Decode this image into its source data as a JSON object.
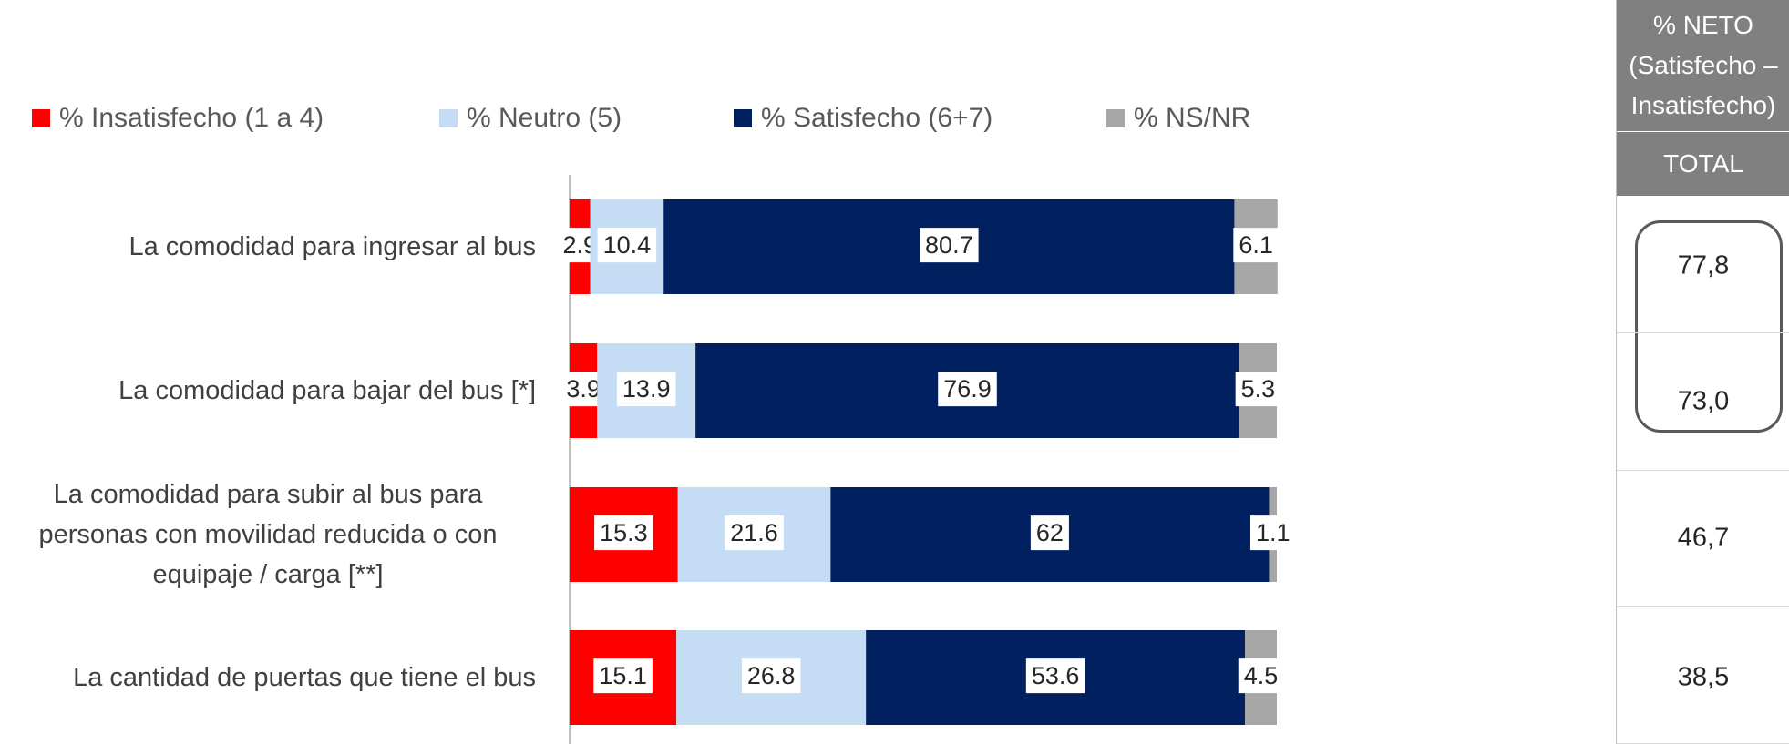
{
  "chart_data": {
    "type": "stacked-bar-horizontal",
    "categories": [
      "La comodidad para ingresar al bus",
      "La comodidad para bajar del bus [*]",
      "La comodidad para subir al bus para personas con movilidad reducida o con equipaje / carga [**]",
      "La cantidad de puertas que tiene el bus"
    ],
    "series": [
      {
        "name": "% Insatisfecho (1 a 4)",
        "color": "#ff0000",
        "values": [
          2.9,
          3.9,
          15.3,
          15.1
        ]
      },
      {
        "name": "% Neutro (5)",
        "color": "#c5dcf5",
        "values": [
          10.4,
          13.9,
          21.6,
          26.8
        ]
      },
      {
        "name": "% Satisfecho (6+7)",
        "color": "#002060",
        "values": [
          80.7,
          76.9,
          62,
          53.6
        ]
      },
      {
        "name": "% NS/NR",
        "color": "#a6a6a6",
        "values": [
          6.1,
          5.3,
          1.1,
          4.5
        ]
      }
    ],
    "xlim": [
      0,
      100
    ],
    "legend": "top"
  },
  "table": {
    "header": [
      "% NETO",
      "(Satisfecho –",
      "Insatisfecho)"
    ],
    "subheader": "TOTAL",
    "values": [
      "77,8",
      "73,0",
      "46,7",
      "38,5"
    ]
  }
}
